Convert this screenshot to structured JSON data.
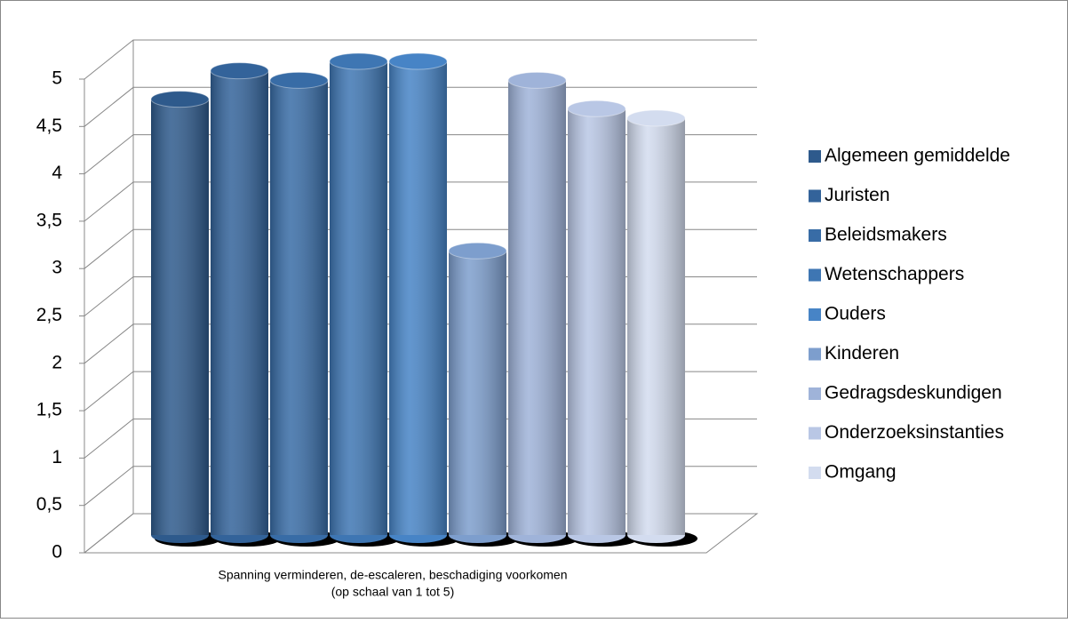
{
  "chart_data": {
    "type": "bar3d",
    "categories": [
      "Spanning verminderen, de-escaleren, beschadiging voorkomen"
    ],
    "x_label": "(op schaal van 1 tot 5)",
    "series": [
      {
        "name": "Algemeen gemiddelde",
        "color": "#2e5a8c",
        "values": [
          4.6
        ]
      },
      {
        "name": "Juristen",
        "color": "#33639a",
        "values": [
          4.9
        ]
      },
      {
        "name": "Beleidsmakers",
        "color": "#386ca6",
        "values": [
          4.8
        ]
      },
      {
        "name": "Wetenschappers",
        "color": "#3e76b3",
        "values": [
          5
        ]
      },
      {
        "name": "Ouders",
        "color": "#4784c6",
        "values": [
          5
        ]
      },
      {
        "name": "Kinderen",
        "color": "#7d9ecd",
        "values": [
          3
        ]
      },
      {
        "name": "Gedragsdeskundigen",
        "color": "#9fb3d9",
        "values": [
          4.8
        ]
      },
      {
        "name": "Onderzoeksinstanties",
        "color": "#b9c7e5",
        "values": [
          4.5
        ]
      },
      {
        "name": "Omgang",
        "color": "#d3dcef",
        "values": [
          4.4
        ]
      }
    ],
    "ylim": [
      0,
      5
    ],
    "yticks": [
      0,
      {
        "value": 0.5,
        "label": "0,5"
      },
      1,
      {
        "value": 1.5,
        "label": "1,5"
      },
      2,
      {
        "value": 2.5,
        "label": "2,5"
      },
      3,
      {
        "value": 3.5,
        "label": "3,5"
      },
      4,
      {
        "value": 4.5,
        "label": "4,5"
      },
      5
    ],
    "grid": true,
    "legend": "right"
  }
}
